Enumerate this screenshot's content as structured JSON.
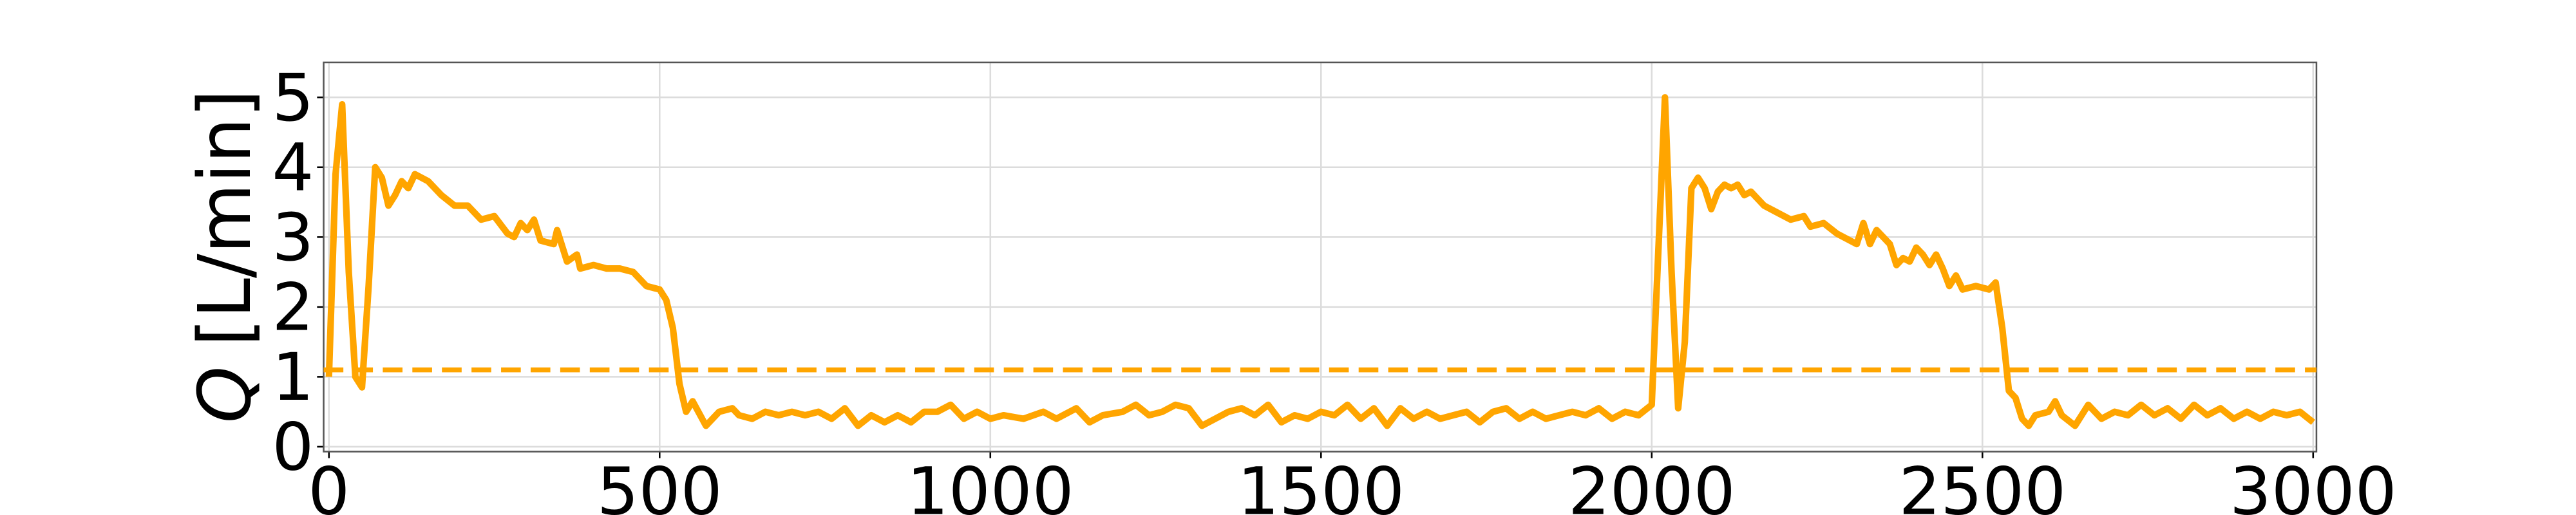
{
  "chart_data": {
    "type": "line",
    "ylabel_var": "Q",
    "ylabel_unit": "[L/min]",
    "x": [
      0,
      10,
      20,
      30,
      40,
      50,
      60,
      70,
      80,
      90,
      100,
      110,
      120,
      130,
      150,
      170,
      190,
      210,
      230,
      250,
      270,
      280,
      290,
      300,
      310,
      320,
      340,
      345,
      360,
      375,
      380,
      400,
      420,
      440,
      460,
      480,
      500,
      510,
      520,
      530,
      540,
      550,
      570,
      590,
      610,
      620,
      640,
      660,
      680,
      700,
      720,
      740,
      760,
      780,
      800,
      820,
      840,
      860,
      880,
      900,
      920,
      940,
      960,
      980,
      1000,
      1020,
      1050,
      1080,
      1100,
      1130,
      1150,
      1170,
      1200,
      1220,
      1240,
      1260,
      1280,
      1300,
      1320,
      1340,
      1360,
      1380,
      1400,
      1420,
      1440,
      1460,
      1480,
      1500,
      1520,
      1540,
      1560,
      1580,
      1600,
      1620,
      1640,
      1660,
      1680,
      1700,
      1720,
      1740,
      1760,
      1780,
      1800,
      1820,
      1840,
      1860,
      1880,
      1900,
      1920,
      1940,
      1960,
      1980,
      2000,
      2010,
      2020,
      2030,
      2040,
      2050,
      2060,
      2070,
      2080,
      2090,
      2100,
      2110,
      2120,
      2130,
      2140,
      2150,
      2170,
      2190,
      2210,
      2230,
      2240,
      2260,
      2280,
      2300,
      2310,
      2320,
      2330,
      2340,
      2360,
      2370,
      2380,
      2390,
      2400,
      2410,
      2420,
      2430,
      2440,
      2450,
      2460,
      2470,
      2490,
      2510,
      2520,
      2530,
      2540,
      2550,
      2560,
      2570,
      2580,
      2600,
      2610,
      2620,
      2640,
      2660,
      2680,
      2700,
      2720,
      2740,
      2760,
      2780,
      2800,
      2820,
      2840,
      2860,
      2880,
      2900,
      2920,
      2940,
      2960,
      2980,
      3000
    ],
    "series": [
      {
        "color": "#ffa500",
        "values": [
          1.0,
          3.9,
          4.9,
          2.5,
          1.0,
          0.85,
          2.3,
          4.0,
          3.85,
          3.45,
          3.6,
          3.8,
          3.7,
          3.9,
          3.8,
          3.6,
          3.45,
          3.45,
          3.25,
          3.3,
          3.05,
          3.0,
          3.2,
          3.1,
          3.25,
          2.95,
          2.9,
          3.1,
          2.65,
          2.75,
          2.55,
          2.6,
          2.55,
          2.55,
          2.5,
          2.3,
          2.25,
          2.1,
          1.7,
          0.9,
          0.5,
          0.65,
          0.3,
          0.5,
          0.55,
          0.45,
          0.4,
          0.5,
          0.45,
          0.5,
          0.45,
          0.5,
          0.4,
          0.55,
          0.3,
          0.45,
          0.35,
          0.45,
          0.35,
          0.5,
          0.5,
          0.6,
          0.4,
          0.5,
          0.4,
          0.45,
          0.4,
          0.5,
          0.4,
          0.55,
          0.35,
          0.45,
          0.5,
          0.6,
          0.45,
          0.5,
          0.6,
          0.55,
          0.3,
          0.4,
          0.5,
          0.55,
          0.45,
          0.6,
          0.35,
          0.45,
          0.4,
          0.5,
          0.45,
          0.6,
          0.4,
          0.55,
          0.3,
          0.55,
          0.4,
          0.5,
          0.4,
          0.45,
          0.5,
          0.35,
          0.5,
          0.55,
          0.4,
          0.5,
          0.4,
          0.45,
          0.5,
          0.45,
          0.55,
          0.4,
          0.5,
          0.45,
          0.6,
          2.8,
          5.0,
          2.5,
          0.55,
          1.5,
          3.7,
          3.85,
          3.7,
          3.4,
          3.65,
          3.75,
          3.7,
          3.75,
          3.6,
          3.65,
          3.45,
          3.35,
          3.25,
          3.3,
          3.15,
          3.2,
          3.05,
          2.95,
          2.9,
          3.2,
          2.9,
          3.1,
          2.9,
          2.6,
          2.7,
          2.65,
          2.85,
          2.75,
          2.6,
          2.75,
          2.55,
          2.3,
          2.45,
          2.25,
          2.3,
          2.25,
          2.35,
          1.7,
          0.8,
          0.7,
          0.4,
          0.3,
          0.45,
          0.5,
          0.65,
          0.45,
          0.3,
          0.6,
          0.4,
          0.5,
          0.45,
          0.6,
          0.45,
          0.55,
          0.4,
          0.6,
          0.45,
          0.55,
          0.4,
          0.5,
          0.4,
          0.5,
          0.45,
          0.5,
          0.35
        ]
      }
    ],
    "hline": 1.1,
    "xlim": [
      -8,
      3005
    ],
    "ylim": [
      -0.07,
      5.5
    ],
    "xticks": [
      0,
      500,
      1000,
      1500,
      2000,
      2500,
      3000
    ],
    "yticks": [
      0,
      1,
      2,
      3,
      4,
      5
    ],
    "grid": true
  }
}
